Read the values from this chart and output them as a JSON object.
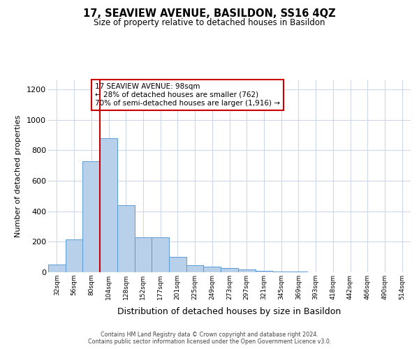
{
  "title": "17, SEAVIEW AVENUE, BASILDON, SS16 4QZ",
  "subtitle": "Size of property relative to detached houses in Basildon",
  "xlabel": "Distribution of detached houses by size in Basildon",
  "ylabel": "Number of detached properties",
  "categories": [
    "32sqm",
    "56sqm",
    "80sqm",
    "104sqm",
    "128sqm",
    "152sqm",
    "177sqm",
    "201sqm",
    "225sqm",
    "249sqm",
    "273sqm",
    "297sqm",
    "321sqm",
    "345sqm",
    "369sqm",
    "393sqm",
    "418sqm",
    "442sqm",
    "466sqm",
    "490sqm",
    "514sqm"
  ],
  "values": [
    50,
    215,
    730,
    880,
    440,
    230,
    230,
    100,
    45,
    38,
    28,
    18,
    10,
    5,
    3,
    2,
    1,
    0,
    0,
    0,
    0
  ],
  "bar_color": "#b8d0ea",
  "bar_edge_color": "#5b9bd5",
  "property_line_bar_idx": 2.5,
  "property_line_color": "#cc0000",
  "annotation_text": "17 SEAVIEW AVENUE: 98sqm\n← 28% of detached houses are smaller (762)\n70% of semi-detached houses are larger (1,916) →",
  "annotation_box_color": "#ffffff",
  "annotation_box_edge": "#cc0000",
  "ylim": [
    0,
    1260
  ],
  "yticks": [
    0,
    200,
    400,
    600,
    800,
    1000,
    1200
  ],
  "background_color": "#ffffff",
  "grid_color": "#cdd8ea",
  "footer_line1": "Contains HM Land Registry data © Crown copyright and database right 2024.",
  "footer_line2": "Contains public sector information licensed under the Open Government Licence v3.0."
}
